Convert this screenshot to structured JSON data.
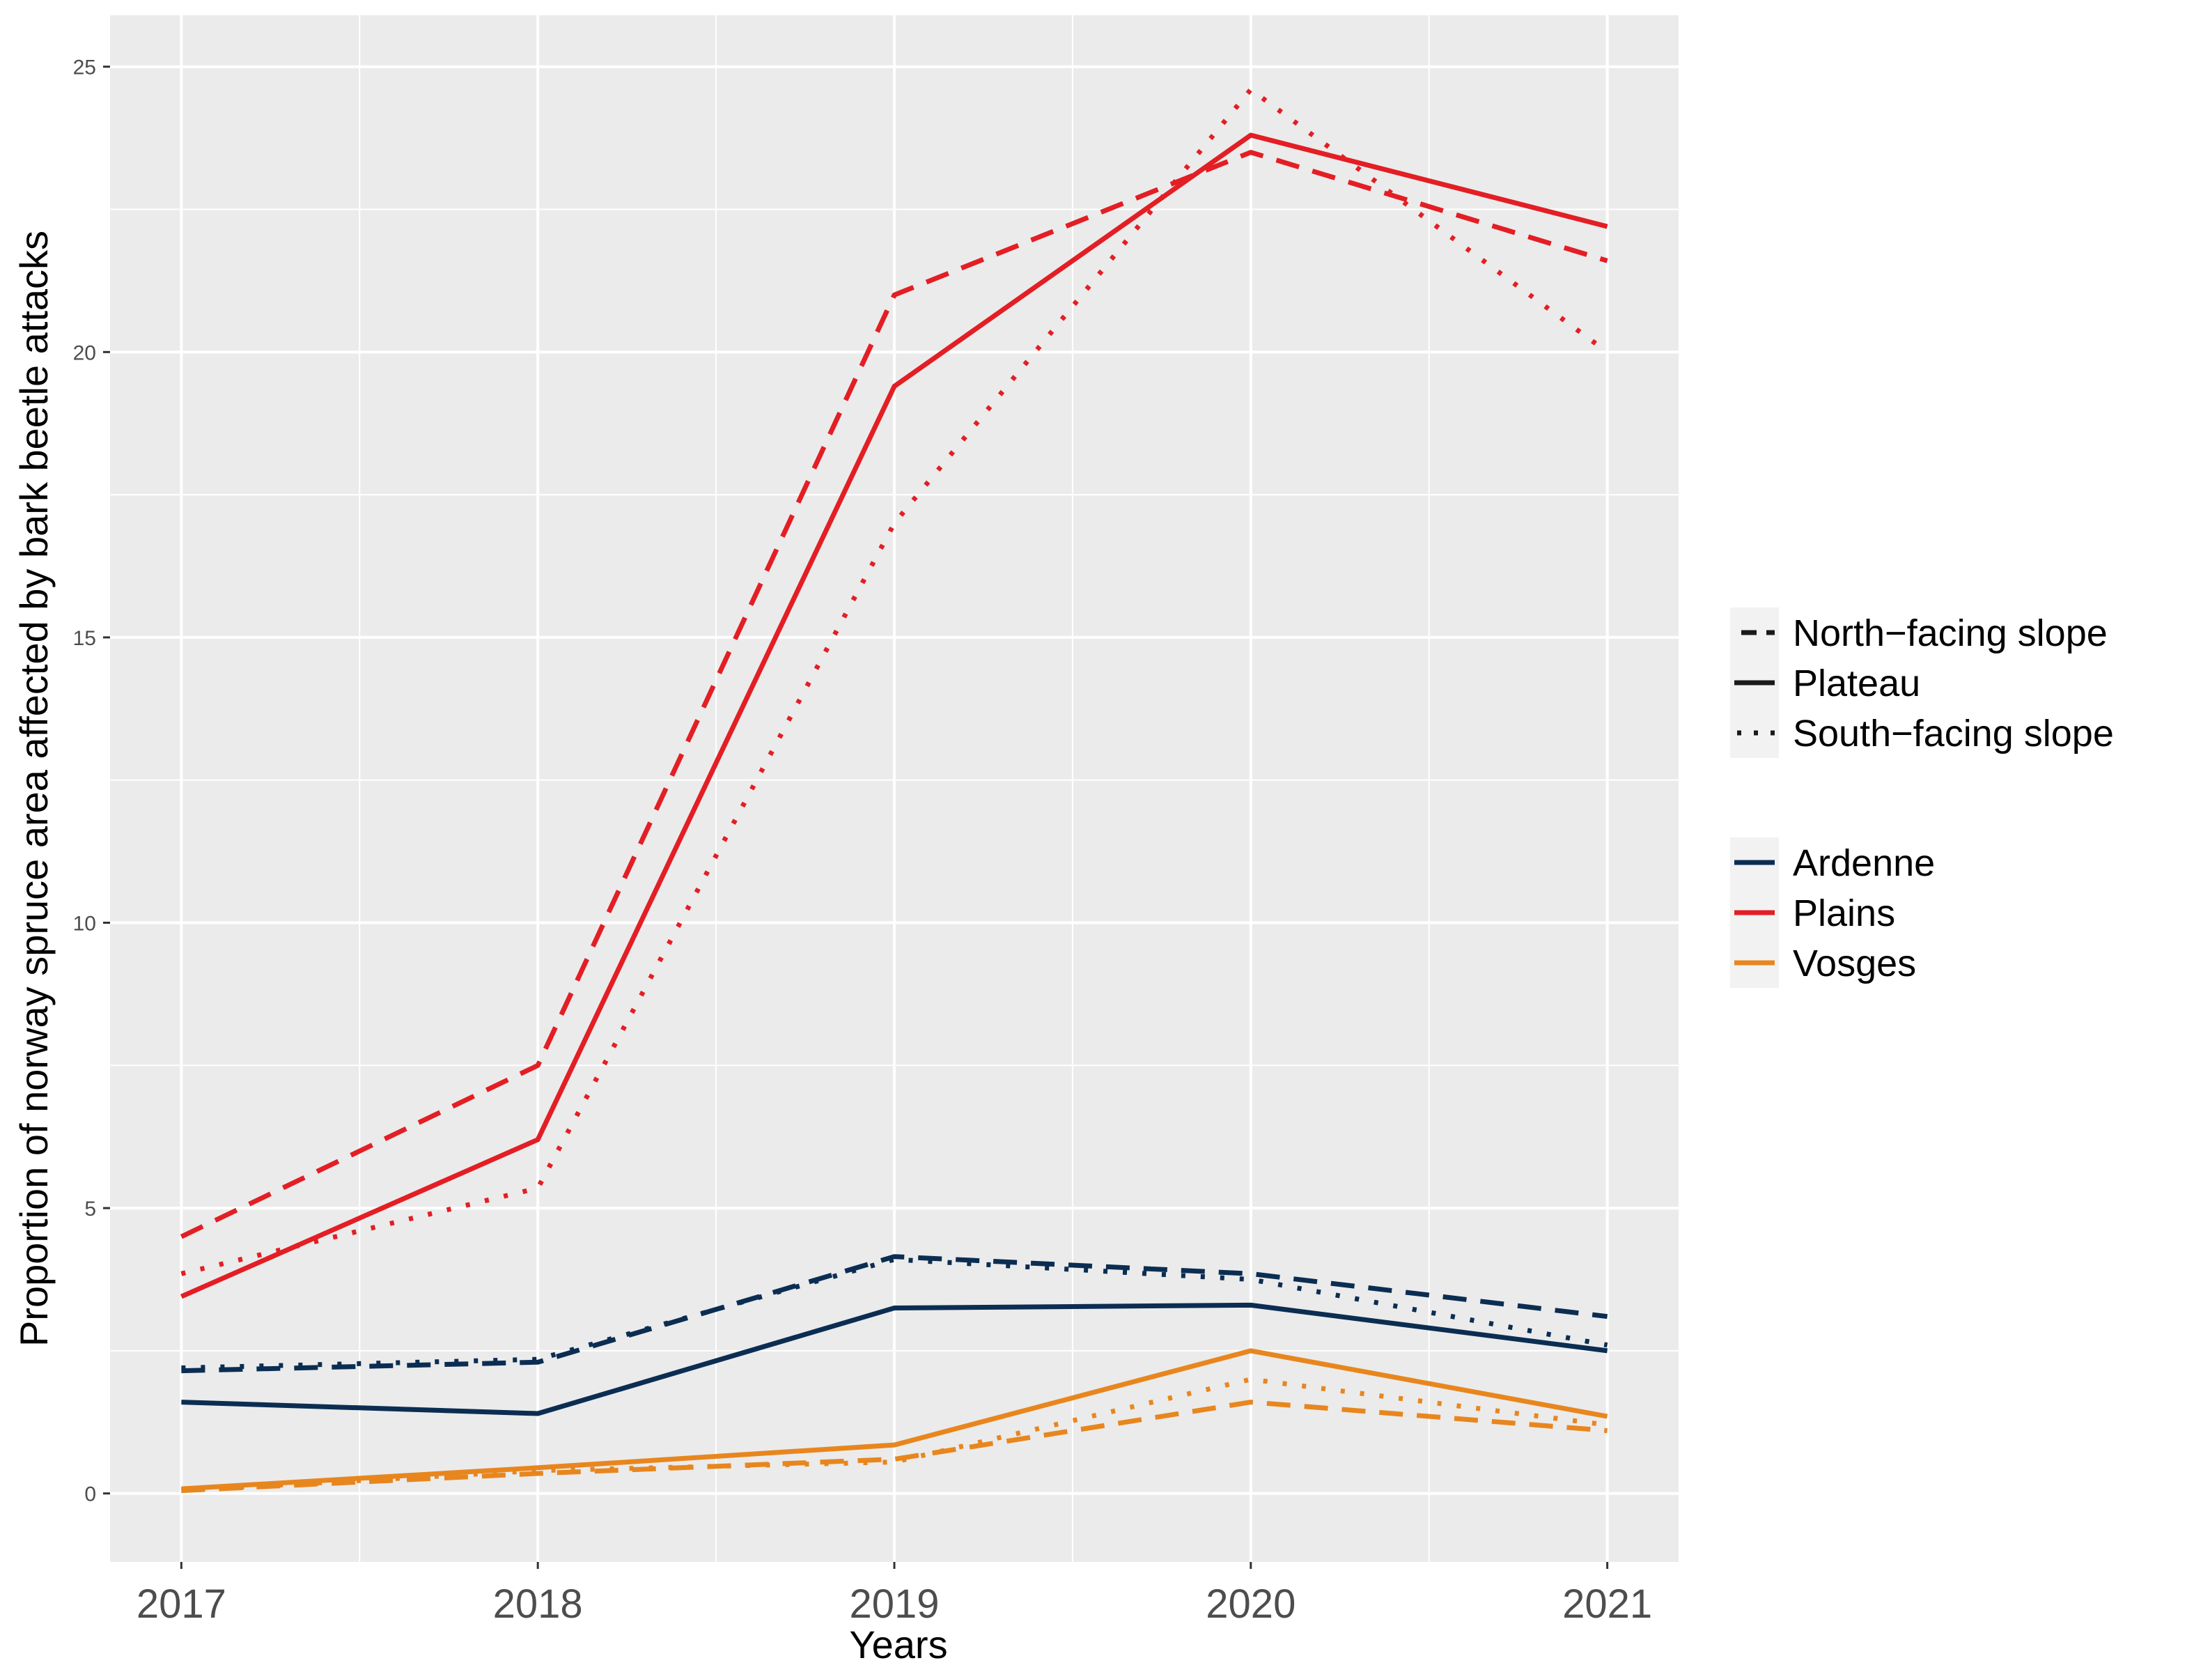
{
  "chart_data": {
    "type": "line",
    "title": "",
    "xlabel": "Years",
    "ylabel": "Proportion of norway spruce area affected by bark beetle attacks",
    "x": [
      2017,
      2018,
      2019,
      2020,
      2021
    ],
    "x_tick_labels": [
      "2017",
      "2018",
      "2019",
      "2020",
      "2021"
    ],
    "xlim": [
      2016.8,
      2021.2
    ],
    "y_ticks": [
      0,
      5,
      10,
      15,
      20,
      25
    ],
    "y_tick_labels": [
      "0",
      "5",
      "10",
      "15",
      "20",
      "25"
    ],
    "ylim": [
      -1.2,
      25.9
    ],
    "grid": true,
    "legend_position": "right",
    "linetype_legend": [
      {
        "label": "North−facing slope",
        "linetype": "dashed"
      },
      {
        "label": "Plateau",
        "linetype": "solid"
      },
      {
        "label": "South−facing slope",
        "linetype": "dotted"
      }
    ],
    "color_legend": [
      {
        "label": "Ardenne",
        "color": "#0b2d52"
      },
      {
        "label": "Plains",
        "color": "#e31e24"
      },
      {
        "label": "Vosges",
        "color": "#e8861e"
      }
    ],
    "series": [
      {
        "region": "Plains",
        "slope": "North−facing slope",
        "color": "#e31e24",
        "linetype": "dashed",
        "values": [
          4.5,
          7.5,
          21.0,
          23.5,
          21.6
        ]
      },
      {
        "region": "Plains",
        "slope": "Plateau",
        "color": "#e31e24",
        "linetype": "solid",
        "values": [
          3.45,
          6.2,
          19.4,
          23.8,
          22.2
        ]
      },
      {
        "region": "Plains",
        "slope": "South−facing slope",
        "color": "#e31e24",
        "linetype": "dotted",
        "values": [
          3.85,
          5.35,
          17.0,
          24.6,
          20.0
        ]
      },
      {
        "region": "Ardenne",
        "slope": "North−facing slope",
        "color": "#0b2d52",
        "linetype": "dashed",
        "values": [
          2.15,
          2.3,
          4.15,
          3.85,
          3.1
        ]
      },
      {
        "region": "Ardenne",
        "slope": "Plateau",
        "color": "#0b2d52",
        "linetype": "solid",
        "values": [
          1.6,
          1.4,
          3.25,
          3.3,
          2.5
        ]
      },
      {
        "region": "Ardenne",
        "slope": "South−facing slope",
        "color": "#0b2d52",
        "linetype": "dotted",
        "values": [
          2.2,
          2.35,
          4.1,
          3.75,
          2.6
        ]
      },
      {
        "region": "Vosges",
        "slope": "North−facing slope",
        "color": "#e8861e",
        "linetype": "dashed",
        "values": [
          0.05,
          0.35,
          0.6,
          1.6,
          1.1
        ]
      },
      {
        "region": "Vosges",
        "slope": "Plateau",
        "color": "#e8861e",
        "linetype": "solid",
        "values": [
          0.08,
          0.45,
          0.85,
          2.5,
          1.35
        ]
      },
      {
        "region": "Vosges",
        "slope": "South−facing slope",
        "color": "#e8861e",
        "linetype": "dotted",
        "values": [
          0.05,
          0.4,
          0.55,
          2.0,
          1.2
        ]
      }
    ]
  }
}
